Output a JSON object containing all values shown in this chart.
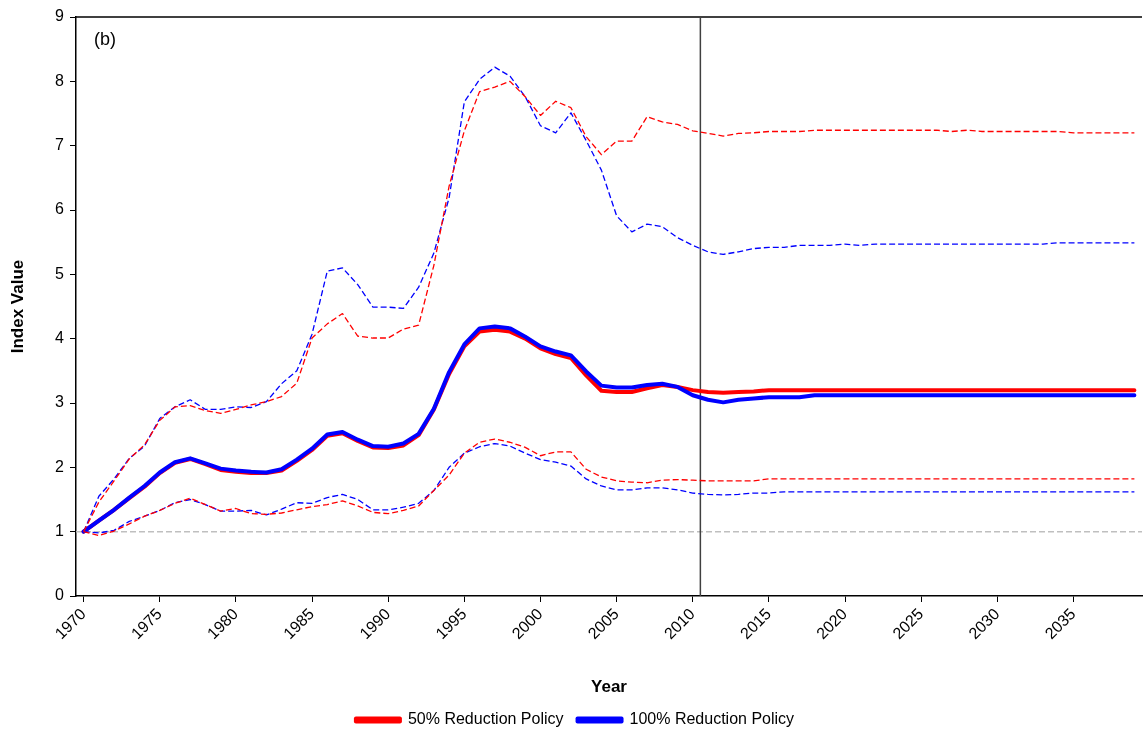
{
  "chart_data": {
    "type": "line",
    "xlabel": "Year",
    "ylabel": "Index Value",
    "annotations": [
      "(b)"
    ],
    "x": [
      1970,
      1971,
      1972,
      1973,
      1974,
      1975,
      1976,
      1977,
      1978,
      1979,
      1980,
      1981,
      1982,
      1983,
      1984,
      1985,
      1986,
      1987,
      1988,
      1989,
      1990,
      1991,
      1992,
      1993,
      1994,
      1995,
      1996,
      1997,
      1998,
      1999,
      2000,
      2001,
      2002,
      2003,
      2004,
      2005,
      2006,
      2007,
      2008,
      2009,
      2010,
      2011,
      2012,
      2013,
      2014,
      2015,
      2016,
      2017,
      2018,
      2019,
      2020,
      2021,
      2022,
      2023,
      2024,
      2025,
      2026,
      2027,
      2028,
      2029,
      2030,
      2031,
      2032,
      2033,
      2034,
      2035,
      2036,
      2037,
      2038,
      2039
    ],
    "series": [
      {
        "name": "50% Reduction Policy",
        "color": "#ff0000",
        "line_style": "solid",
        "values": [
          1.0,
          1.17,
          1.34,
          1.52,
          1.7,
          1.91,
          2.07,
          2.13,
          2.05,
          1.96,
          1.93,
          1.91,
          1.91,
          1.95,
          2.1,
          2.27,
          2.49,
          2.53,
          2.41,
          2.31,
          2.3,
          2.34,
          2.5,
          2.9,
          3.45,
          3.88,
          4.11,
          4.14,
          4.11,
          4.0,
          3.85,
          3.76,
          3.7,
          3.43,
          3.19,
          3.17,
          3.17,
          3.23,
          3.28,
          3.25,
          3.2,
          3.17,
          3.16,
          3.17,
          3.18,
          3.2,
          3.2,
          3.2,
          3.2,
          3.2,
          3.2,
          3.2,
          3.2,
          3.2,
          3.2,
          3.2,
          3.2,
          3.2,
          3.2,
          3.2,
          3.2,
          3.2,
          3.2,
          3.2,
          3.2,
          3.2,
          3.2,
          3.2,
          3.2,
          3.2
        ]
      },
      {
        "name": "100% Reduction Policy",
        "color": "#0000ff",
        "line_style": "solid",
        "values": [
          1.0,
          1.17,
          1.34,
          1.53,
          1.71,
          1.92,
          2.08,
          2.14,
          2.06,
          1.98,
          1.95,
          1.93,
          1.92,
          1.97,
          2.12,
          2.29,
          2.51,
          2.55,
          2.43,
          2.33,
          2.32,
          2.37,
          2.52,
          2.91,
          3.48,
          3.91,
          4.16,
          4.19,
          4.16,
          4.03,
          3.88,
          3.8,
          3.74,
          3.49,
          3.27,
          3.24,
          3.24,
          3.28,
          3.3,
          3.25,
          3.12,
          3.05,
          3.01,
          3.05,
          3.07,
          3.09,
          3.09,
          3.09,
          3.12,
          3.12,
          3.12,
          3.12,
          3.12,
          3.12,
          3.12,
          3.12,
          3.12,
          3.12,
          3.12,
          3.12,
          3.12,
          3.12,
          3.12,
          3.12,
          3.12,
          3.12,
          3.12,
          3.12,
          3.12,
          3.12
        ]
      },
      {
        "color": "#0000ff",
        "line_style": "dashed",
        "values": [
          1.0,
          1.55,
          1.82,
          2.14,
          2.33,
          2.76,
          2.94,
          3.05,
          2.9,
          2.9,
          2.94,
          2.93,
          3.02,
          3.3,
          3.5,
          4.07,
          5.05,
          5.1,
          4.84,
          4.49,
          4.49,
          4.47,
          4.8,
          5.33,
          6.19,
          7.68,
          8.03,
          8.22,
          8.08,
          7.76,
          7.31,
          7.2,
          7.51,
          7.08,
          6.62,
          5.91,
          5.66,
          5.78,
          5.74,
          5.57,
          5.45,
          5.35,
          5.31,
          5.35,
          5.4,
          5.42,
          5.42,
          5.45,
          5.45,
          5.45,
          5.47,
          5.45,
          5.47,
          5.47,
          5.47,
          5.47,
          5.47,
          5.47,
          5.47,
          5.47,
          5.47,
          5.47,
          5.47,
          5.47,
          5.49,
          5.49,
          5.49,
          5.49,
          5.49,
          5.49
        ]
      },
      {
        "color": "#0000ff",
        "line_style": "dashed",
        "values": [
          1.0,
          0.98,
          1.02,
          1.16,
          1.24,
          1.33,
          1.45,
          1.5,
          1.42,
          1.32,
          1.32,
          1.33,
          1.26,
          1.35,
          1.45,
          1.44,
          1.53,
          1.58,
          1.5,
          1.34,
          1.34,
          1.38,
          1.44,
          1.64,
          2.0,
          2.22,
          2.32,
          2.37,
          2.33,
          2.22,
          2.12,
          2.08,
          2.02,
          1.82,
          1.71,
          1.65,
          1.65,
          1.68,
          1.68,
          1.65,
          1.6,
          1.58,
          1.57,
          1.58,
          1.6,
          1.6,
          1.62,
          1.62,
          1.62,
          1.62,
          1.62,
          1.62,
          1.62,
          1.62,
          1.62,
          1.62,
          1.62,
          1.62,
          1.62,
          1.62,
          1.62,
          1.62,
          1.62,
          1.62,
          1.62,
          1.62,
          1.62,
          1.62,
          1.62,
          1.62
        ]
      },
      {
        "color": "#ff0000",
        "line_style": "dashed",
        "values": [
          1.0,
          1.46,
          1.79,
          2.13,
          2.35,
          2.73,
          2.94,
          2.96,
          2.88,
          2.84,
          2.9,
          2.97,
          3.02,
          3.1,
          3.31,
          4.01,
          4.23,
          4.39,
          4.04,
          4.01,
          4.01,
          4.15,
          4.21,
          5.14,
          6.37,
          7.23,
          7.84,
          7.91,
          8.0,
          7.76,
          7.47,
          7.69,
          7.59,
          7.14,
          6.86,
          7.07,
          7.07,
          7.45,
          7.37,
          7.33,
          7.23,
          7.19,
          7.15,
          7.19,
          7.2,
          7.22,
          7.22,
          7.22,
          7.24,
          7.24,
          7.24,
          7.24,
          7.24,
          7.24,
          7.24,
          7.24,
          7.24,
          7.22,
          7.24,
          7.22,
          7.22,
          7.22,
          7.22,
          7.22,
          7.22,
          7.2,
          7.2,
          7.2,
          7.2,
          7.2
        ]
      },
      {
        "color": "#ff0000",
        "line_style": "dashed",
        "values": [
          1.0,
          0.94,
          1.01,
          1.12,
          1.24,
          1.33,
          1.44,
          1.52,
          1.42,
          1.32,
          1.36,
          1.28,
          1.27,
          1.29,
          1.34,
          1.39,
          1.42,
          1.48,
          1.4,
          1.3,
          1.28,
          1.33,
          1.4,
          1.64,
          1.88,
          2.22,
          2.39,
          2.44,
          2.39,
          2.31,
          2.18,
          2.24,
          2.24,
          1.97,
          1.85,
          1.79,
          1.77,
          1.76,
          1.8,
          1.81,
          1.8,
          1.79,
          1.79,
          1.79,
          1.79,
          1.82,
          1.82,
          1.82,
          1.82,
          1.82,
          1.82,
          1.82,
          1.82,
          1.82,
          1.82,
          1.82,
          1.82,
          1.82,
          1.82,
          1.82,
          1.82,
          1.82,
          1.82,
          1.82,
          1.82,
          1.82,
          1.82,
          1.82,
          1.82,
          1.82
        ]
      }
    ],
    "xlim": [
      1969.5,
      2039.5
    ],
    "xticks": [
      1970,
      1975,
      1980,
      1985,
      1990,
      1995,
      2000,
      2005,
      2010,
      2015,
      2020,
      2025,
      2030,
      2035
    ],
    "ylim": [
      0,
      9
    ],
    "yticks": [
      0,
      1,
      2,
      3,
      4,
      5,
      6,
      7,
      8,
      9
    ],
    "ref_lines": [
      {
        "axis": "y",
        "value": 1,
        "color": "#bfbfbf",
        "line_style": "dashed"
      },
      {
        "axis": "x",
        "value": 2010.5,
        "color": "#404040",
        "line_style": "solid"
      }
    ],
    "legend": "bottom",
    "marker": "none"
  }
}
